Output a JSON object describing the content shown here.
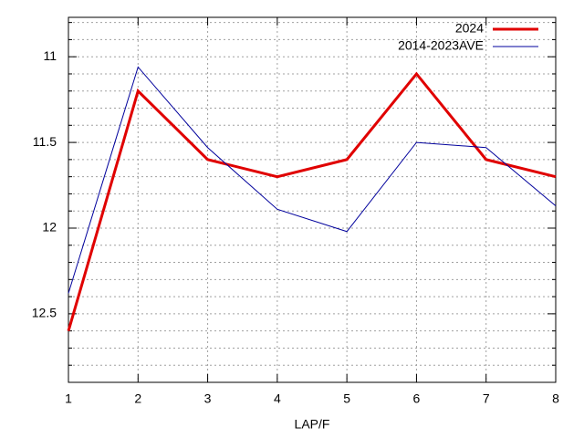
{
  "chart_data": {
    "type": "line",
    "xlabel": "LAP/F",
    "x": [
      1,
      2,
      3,
      4,
      5,
      6,
      7,
      8
    ],
    "series": [
      {
        "name": "2024",
        "color": "#e00000",
        "width": 3,
        "values": [
          12.6,
          11.2,
          11.6,
          11.7,
          11.6,
          11.1,
          11.6,
          11.7
        ]
      },
      {
        "name": "2014-2023AVE",
        "color": "#00009c",
        "width": 1,
        "values": [
          12.38,
          11.06,
          11.53,
          11.89,
          12.02,
          11.5,
          11.53,
          11.87
        ]
      }
    ],
    "xlim": [
      1,
      8
    ],
    "xticks": [
      1,
      2,
      3,
      4,
      5,
      6,
      7,
      8
    ],
    "ylim": [
      12.9,
      10.77
    ],
    "yticks": [
      11,
      11.5,
      12,
      12.5
    ],
    "y_minor_ticks": [
      10.8,
      10.9,
      11.1,
      11.2,
      11.3,
      11.4,
      11.6,
      11.7,
      11.8,
      11.9,
      12.1,
      12.2,
      12.3,
      12.4,
      12.6,
      12.7,
      12.8
    ],
    "grid": true,
    "legend": "top-right"
  }
}
